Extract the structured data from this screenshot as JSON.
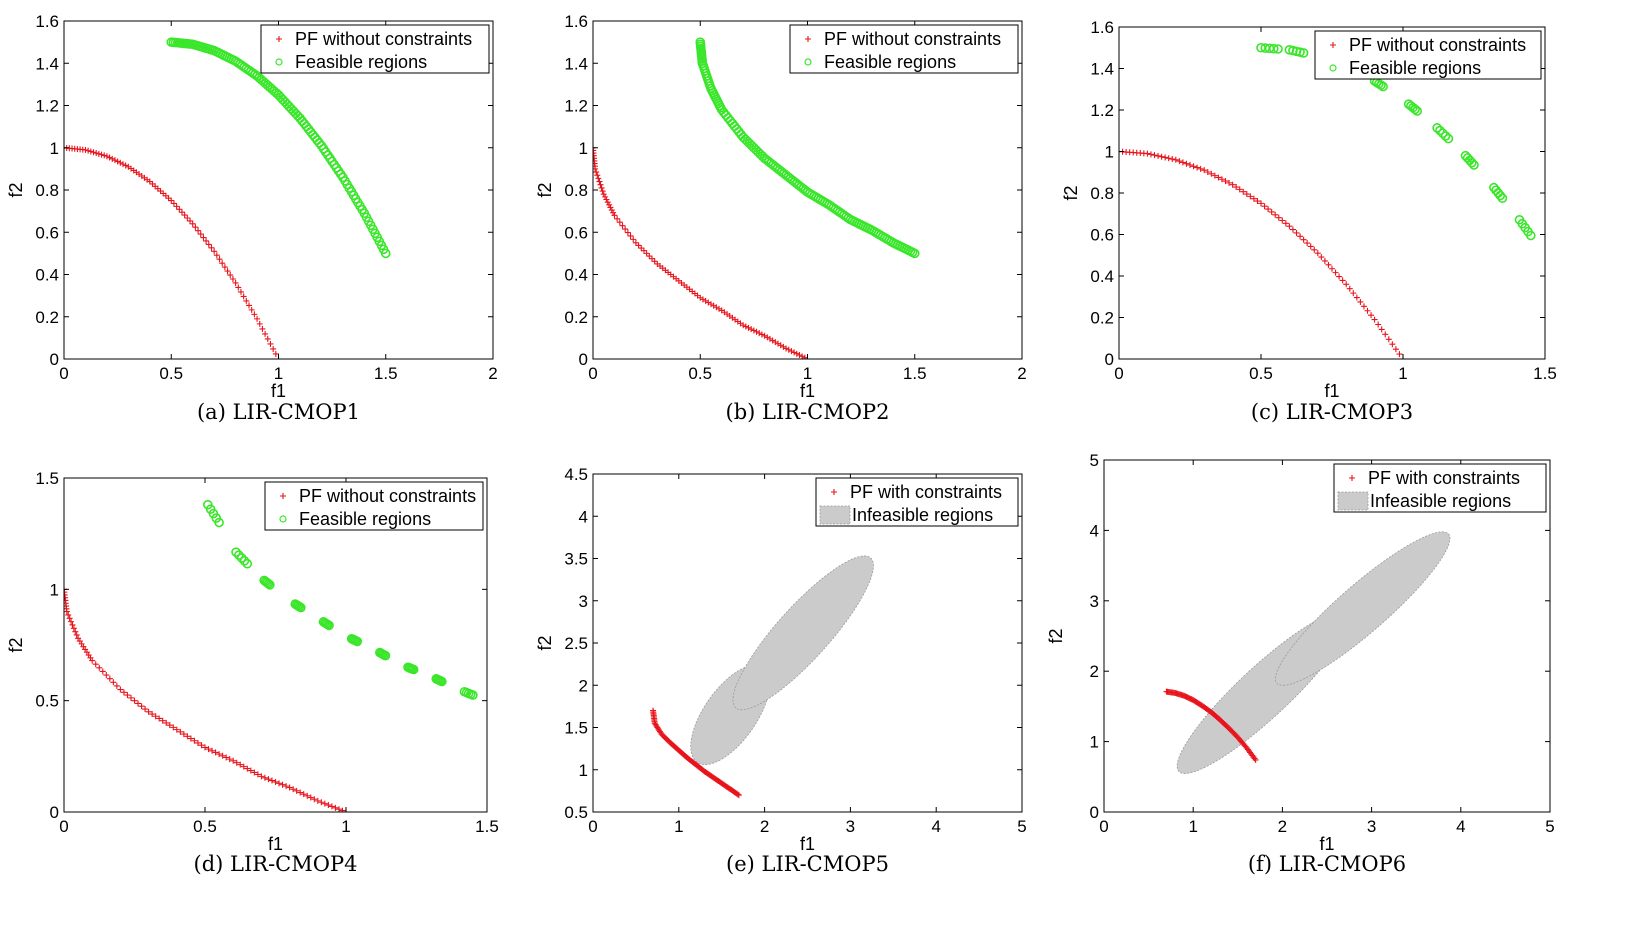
{
  "colors": {
    "pf": "#e8141c",
    "feasible": "#3ae62a",
    "infeasible": "#cbcbcb",
    "axis": "#000000"
  },
  "chart_data": [
    {
      "type": "scatter",
      "caption": "(a) LIR-CMOP1",
      "xlabel": "f1",
      "ylabel": "f2",
      "xlim": [
        0,
        2
      ],
      "ylim": [
        0,
        1.6
      ],
      "xticks": [
        "0",
        "0.5",
        "1",
        "1.5",
        "2"
      ],
      "yticks": [
        "0",
        "0.2",
        "0.4",
        "0.6",
        "0.8",
        "1",
        "1.2",
        "1.4",
        "1.6"
      ],
      "legend_position": "top-right",
      "series": [
        {
          "name": "PF without constraints",
          "marker": "plus",
          "color": "#e8141c",
          "shape": "concave",
          "x": [
            0,
            0.1,
            0.2,
            0.3,
            0.4,
            0.5,
            0.6,
            0.7,
            0.8,
            0.9,
            1.0
          ],
          "y": [
            1.0,
            0.99,
            0.96,
            0.91,
            0.84,
            0.75,
            0.64,
            0.51,
            0.36,
            0.19,
            0.0
          ]
        },
        {
          "name": "Feasible regions",
          "marker": "circle",
          "color": "#3ae62a",
          "shape": "concave",
          "x": [
            0.5,
            0.6,
            0.7,
            0.8,
            0.9,
            1.0,
            1.1,
            1.2,
            1.3,
            1.4,
            1.5
          ],
          "y": [
            1.5,
            1.49,
            1.46,
            1.41,
            1.34,
            1.25,
            1.14,
            1.01,
            0.86,
            0.69,
            0.5
          ]
        }
      ]
    },
    {
      "type": "scatter",
      "caption": "(b) LIR-CMOP2",
      "xlabel": "f1",
      "ylabel": "f2",
      "xlim": [
        0,
        2
      ],
      "ylim": [
        0,
        1.6
      ],
      "xticks": [
        "0",
        "0.5",
        "1",
        "1.5",
        "2"
      ],
      "yticks": [
        "0",
        "0.2",
        "0.4",
        "0.6",
        "0.8",
        "1",
        "1.2",
        "1.4",
        "1.6"
      ],
      "legend_position": "top-right",
      "series": [
        {
          "name": "PF without constraints",
          "marker": "plus",
          "color": "#e8141c",
          "shape": "convex",
          "x": [
            0,
            0.01,
            0.05,
            0.1,
            0.2,
            0.3,
            0.4,
            0.5,
            0.6,
            0.7,
            0.8,
            0.9,
            1.0
          ],
          "y": [
            1.0,
            0.9,
            0.78,
            0.68,
            0.55,
            0.45,
            0.37,
            0.29,
            0.23,
            0.16,
            0.11,
            0.05,
            0.0
          ]
        },
        {
          "name": "Feasible regions",
          "marker": "circle",
          "color": "#3ae62a",
          "shape": "convex",
          "x": [
            0.5,
            0.51,
            0.55,
            0.6,
            0.7,
            0.8,
            0.9,
            1.0,
            1.1,
            1.2,
            1.3,
            1.4,
            1.5
          ],
          "y": [
            1.5,
            1.4,
            1.28,
            1.18,
            1.05,
            0.95,
            0.87,
            0.79,
            0.73,
            0.66,
            0.61,
            0.55,
            0.5
          ]
        }
      ]
    },
    {
      "type": "scatter",
      "caption": "(c) LIR-CMOP3",
      "xlabel": "f1",
      "ylabel": "f2",
      "xlim": [
        0,
        1.5
      ],
      "ylim": [
        0,
        1.6
      ],
      "xticks": [
        "0",
        "0.5",
        "1",
        "1.5"
      ],
      "yticks": [
        "0",
        "0.2",
        "0.4",
        "0.6",
        "0.8",
        "1",
        "1.2",
        "1.4",
        "1.6"
      ],
      "legend_position": "top-right",
      "series": [
        {
          "name": "PF without constraints",
          "marker": "plus",
          "color": "#e8141c",
          "shape": "concave",
          "x": [
            0,
            0.1,
            0.2,
            0.3,
            0.4,
            0.5,
            0.6,
            0.7,
            0.8,
            0.9,
            1.0
          ],
          "y": [
            1.0,
            0.99,
            0.96,
            0.91,
            0.84,
            0.75,
            0.64,
            0.51,
            0.36,
            0.19,
            0.0
          ]
        },
        {
          "name": "Feasible regions",
          "marker": "circle",
          "color": "#3ae62a",
          "shape": "segmented",
          "segments": [
            [
              0.5,
              0.56
            ],
            [
              0.6,
              0.65
            ],
            [
              0.8,
              0.82
            ],
            [
              0.9,
              0.93
            ],
            [
              1.02,
              1.05
            ],
            [
              1.12,
              1.16
            ],
            [
              1.22,
              1.25
            ],
            [
              1.32,
              1.35
            ],
            [
              1.41,
              1.45
            ]
          ]
        }
      ]
    },
    {
      "type": "scatter",
      "caption": "(d) LIR-CMOP4",
      "xlabel": "f1",
      "ylabel": "f2",
      "xlim": [
        0,
        1.5
      ],
      "ylim": [
        0,
        1.5
      ],
      "xticks": [
        "0",
        "0.5",
        "1",
        "1.5"
      ],
      "yticks": [
        "0",
        "0.5",
        "1",
        "1.5"
      ],
      "legend_position": "top-right",
      "series": [
        {
          "name": "PF without constraints",
          "marker": "plus",
          "color": "#e8141c",
          "shape": "convex",
          "x": [
            0,
            0.01,
            0.05,
            0.1,
            0.2,
            0.3,
            0.4,
            0.5,
            0.6,
            0.7,
            0.8,
            0.9,
            1.0
          ],
          "y": [
            1.0,
            0.9,
            0.78,
            0.68,
            0.55,
            0.45,
            0.37,
            0.29,
            0.23,
            0.16,
            0.11,
            0.05,
            0.0
          ]
        },
        {
          "name": "Feasible regions",
          "marker": "circle",
          "color": "#3ae62a",
          "shape": "segmented",
          "segments": [
            [
              0.51,
              0.55
            ],
            [
              0.61,
              0.65
            ],
            [
              0.71,
              0.73
            ],
            [
              0.82,
              0.84
            ],
            [
              0.92,
              0.94
            ],
            [
              1.02,
              1.04
            ],
            [
              1.12,
              1.14
            ],
            [
              1.22,
              1.24
            ],
            [
              1.32,
              1.34
            ],
            [
              1.42,
              1.45
            ]
          ]
        }
      ]
    },
    {
      "type": "scatter",
      "caption": "(e) LIR-CMOP5",
      "xlabel": "f1",
      "ylabel": "f2",
      "xlim": [
        0,
        5
      ],
      "ylim": [
        0.5,
        4.5
      ],
      "xticks": [
        "0",
        "1",
        "2",
        "3",
        "4",
        "5"
      ],
      "yticks": [
        "0.5",
        "1",
        "1.5",
        "2",
        "2.5",
        "3",
        "3.5",
        "4",
        "4.5"
      ],
      "legend_position": "top-right",
      "series": [
        {
          "name": "PF with constraints",
          "marker": "plus",
          "color": "#e8141c",
          "x": [
            0.7,
            0.72,
            0.8,
            0.9,
            1.0,
            1.1,
            1.2,
            1.3,
            1.4,
            1.5,
            1.6,
            1.7
          ],
          "y": [
            1.7,
            1.55,
            1.42,
            1.32,
            1.23,
            1.14,
            1.06,
            0.98,
            0.91,
            0.84,
            0.77,
            0.7
          ]
        },
        {
          "name": "Infeasible regions",
          "marker": "patch",
          "color": "#cbcbcb",
          "ellipses": [
            {
              "cx": 1.6,
              "cy": 1.65,
              "rx": 1.35,
              "ry": 0.62,
              "rotate": -55
            },
            {
              "cx": 2.45,
              "cy": 2.62,
              "rx": 2.35,
              "ry": 0.62,
              "rotate": -48
            }
          ]
        }
      ]
    },
    {
      "type": "scatter",
      "caption": "(f) LIR-CMOP6",
      "xlabel": "f1",
      "ylabel": "f2",
      "xlim": [
        0,
        5
      ],
      "ylim": [
        0,
        5
      ],
      "xticks": [
        "0",
        "1",
        "2",
        "3",
        "4",
        "5"
      ],
      "yticks": [
        "0",
        "1",
        "2",
        "3",
        "4",
        "5"
      ],
      "legend_position": "top-right",
      "series": [
        {
          "name": "PF with constraints",
          "marker": "plus",
          "color": "#e8141c",
          "x": [
            0.7,
            0.8,
            0.9,
            1.0,
            1.1,
            1.2,
            1.3,
            1.4,
            1.5,
            1.6,
            1.7
          ],
          "y": [
            1.71,
            1.69,
            1.65,
            1.59,
            1.51,
            1.42,
            1.31,
            1.19,
            1.06,
            0.91,
            0.74
          ]
        },
        {
          "name": "Infeasible regions",
          "marker": "patch",
          "color": "#cbcbcb",
          "ellipses": [
            {
              "cx": 1.79,
              "cy": 1.7,
              "rx": 2.6,
              "ry": 0.72,
              "rotate": -43
            },
            {
              "cx": 2.9,
              "cy": 2.89,
              "rx": 2.55,
              "ry": 0.68,
              "rotate": -41
            }
          ]
        }
      ]
    }
  ]
}
